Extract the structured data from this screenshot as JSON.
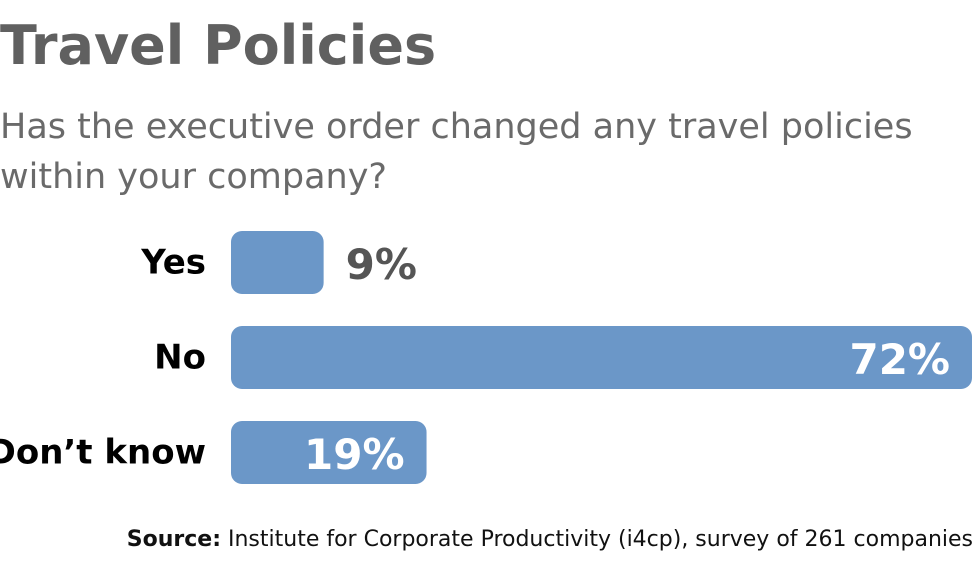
{
  "chart_data": {
    "type": "bar",
    "orientation": "horizontal",
    "title": "Travel Policies",
    "subtitle": "Has the executive order changed any travel policies within your company?",
    "categories": [
      "Yes",
      "No",
      "Don’t know"
    ],
    "values": [
      9,
      72,
      19
    ],
    "value_labels": [
      "9%",
      "72%",
      "19%"
    ],
    "xlim": [
      0,
      72
    ],
    "grid": false,
    "legend": "none"
  },
  "colors": {
    "bar": "#6b97c8",
    "label_outside": "#555555",
    "label_inside": "#ffffff"
  },
  "source": {
    "label": "Source:",
    "text": "Institute for Corporate Productivity (i4cp), survey of 261 companies"
  }
}
